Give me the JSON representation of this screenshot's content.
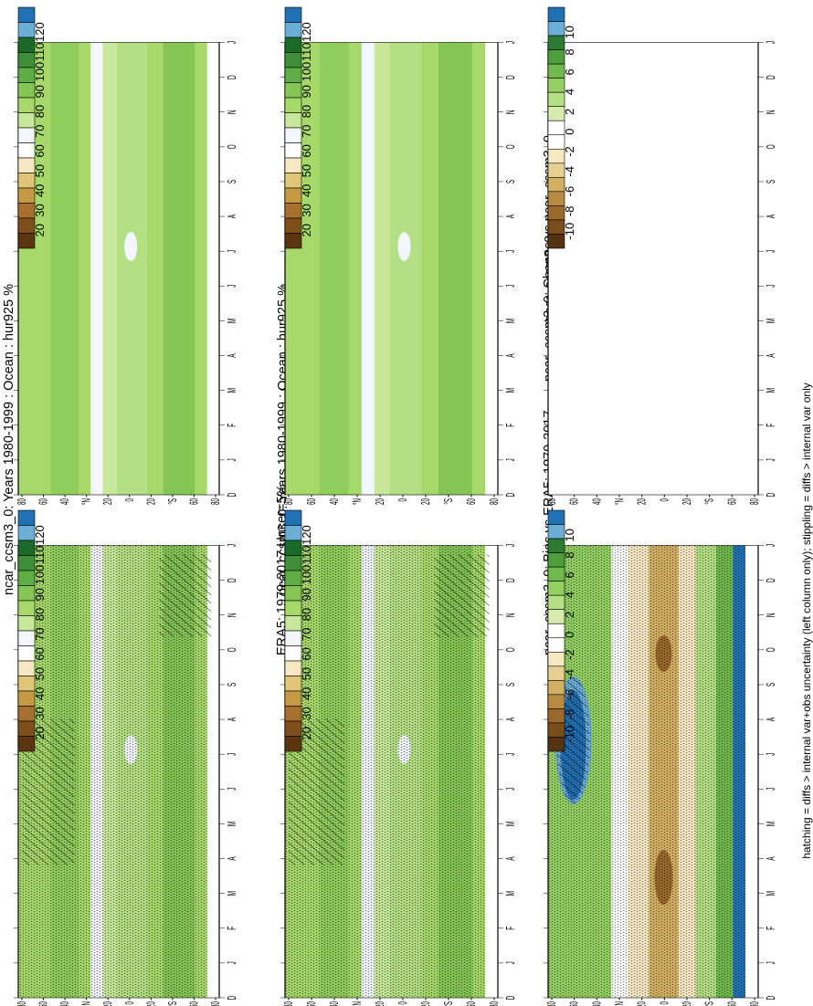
{
  "figure": {
    "footnote": "hatching = diffs > internal var+obs uncertainty (left column only); stippling = diffs > internal var only"
  },
  "colors": {
    "abs_scale": [
      "#2171b5",
      "#6baed6",
      "#1a6b2a",
      "#3f8f3a",
      "#5fae45",
      "#84c555",
      "#a6d96a",
      "#c7e89a",
      "#f4f6ff",
      "#ffffff",
      "#f6e8c3",
      "#e0c679",
      "#c49a45",
      "#a6702e",
      "#7f4f1c",
      "#5a3510"
    ],
    "bias_scale": [
      "#2171b5",
      "#6baed6",
      "#2d7a32",
      "#4e9e3e",
      "#6fb94d",
      "#93cf62",
      "#b5df84",
      "#d5ecae",
      "#ffffff",
      "#ffffff",
      "#f6e8c3",
      "#e6cf90",
      "#d2b063",
      "#b88a42",
      "#9a692c",
      "#7a4d1b",
      "#553312"
    ]
  },
  "colorbars": {
    "abs_labels": [
      "120",
      "110",
      "100",
      "90",
      "80",
      "70",
      "60",
      "50",
      "40",
      "30",
      "20"
    ],
    "bias_labels": [
      "10",
      "8",
      "6",
      "4",
      "2",
      "0",
      "-2",
      "-4",
      "-6",
      "-8",
      "-10"
    ]
  },
  "axes": {
    "month_labels": [
      "D",
      "J",
      "F",
      "M",
      "A",
      "M",
      "J",
      "J",
      "A",
      "S",
      "O",
      "N",
      "D",
      "J"
    ],
    "lat_labels": [
      "80",
      "60",
      "40",
      "°N",
      "20",
      "0",
      "20",
      "°S",
      "60",
      "80"
    ]
  },
  "chart_data": [
    {
      "id": "model",
      "type": "heatmap",
      "title": "ncar_ccsm3_0: Years 1980-1999 : Ocean : hur925 %",
      "variable": "hur925",
      "units": "%",
      "colorbar_range": [
        20,
        120
      ],
      "overlay": "stippling and hatching"
    },
    {
      "id": "model-repeat",
      "type": "heatmap",
      "title": "ncar_ccsm3_0: Years 1980-1999 : Ocean : hur925 %",
      "variable": "hur925",
      "units": "%",
      "colorbar_range": [
        20,
        120
      ]
    },
    {
      "id": "obs",
      "type": "heatmap",
      "title": "ERA5: 1979-2017 Uncer=5%",
      "variable": "hur925",
      "units": "%",
      "colorbar_range": [
        20,
        120
      ],
      "overlay": "stippling and hatching"
    },
    {
      "id": "model-label",
      "type": "heatmap",
      "title": "ncar_ccsm3_0",
      "variable": "hur925",
      "units": "%",
      "colorbar_range": [
        20,
        120
      ]
    },
    {
      "id": "bias",
      "type": "heatmap",
      "title": "ncar_ccsm3_0: Bias vs ERA5: 1979-2017",
      "units": "%",
      "colorbar_range": [
        -10,
        10
      ],
      "overlay": "stippling and hatching"
    },
    {
      "id": "change",
      "type": "heatmap",
      "title": "ncar_ccsm3_0: Change vs ncar_ccsm3_0",
      "units": "%",
      "colorbar_range": [
        -10,
        10
      ],
      "values": "all zero (blank)"
    }
  ]
}
